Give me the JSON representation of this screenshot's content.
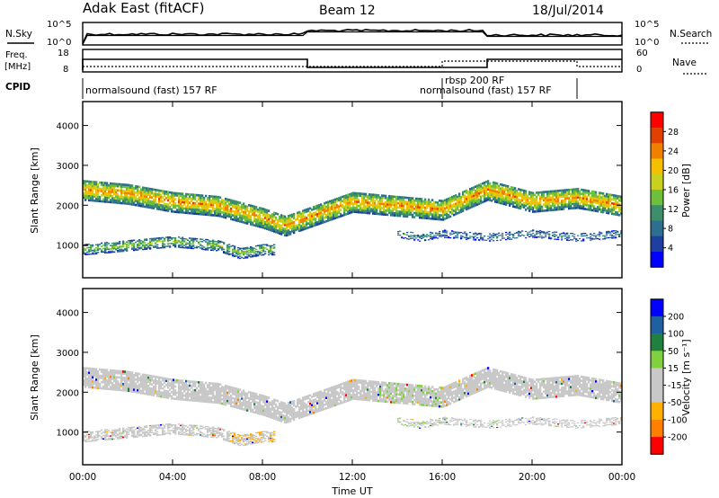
{
  "header": {
    "site": "Adak East (fitACF)",
    "beam": "Beam 12",
    "date": "18/Jul/2014"
  },
  "noise_panel": {
    "left_label": "N.Sky",
    "right_label": "N.Search",
    "left_ticks": [
      "10^5",
      "10^0"
    ],
    "right_ticks": [
      "10^5",
      "10^0"
    ]
  },
  "freq_panel": {
    "left_label_1": "Freq.",
    "left_label_2": "[MHz]",
    "right_label": "Nave",
    "left_ticks": [
      "18",
      "8"
    ],
    "right_ticks": [
      "60",
      "0"
    ]
  },
  "cpid": {
    "label": "CPID",
    "entries": [
      {
        "text": "normalsound (fast) 157 RF",
        "start_hour": 0
      },
      {
        "text": "rbsp 200 RF",
        "start_hour": 16
      },
      {
        "text": "normalsound (fast) 157 RF",
        "start_hour": 16
      }
    ]
  },
  "colors": {
    "power_scale": [
      "#0000ff",
      "#1e3fa0",
      "#2e6e8e",
      "#3c8f6a",
      "#6fbf3a",
      "#c8d020",
      "#f5c000",
      "#f08000",
      "#e04000",
      "#ff0000"
    ],
    "velocity_scale": [
      "#ff0000",
      "#ff8000",
      "#ffb000",
      "#c8c8c8",
      "#c8c8c8",
      "#80d040",
      "#208040",
      "#2060a0",
      "#0000ff"
    ]
  },
  "chart_data": [
    {
      "type": "heatmap",
      "title": "",
      "xlabel": "",
      "ylabel": "Slant Range [km]",
      "colorbar_label": "Power [dB]",
      "colorbar_ticks": [
        "28",
        "24",
        "20",
        "16",
        "12",
        "8",
        "4"
      ],
      "colorbar_range": [
        0,
        32
      ],
      "xlim_hours": [
        0,
        24
      ],
      "ylim_km": [
        180,
        4600
      ],
      "y_ticks": [
        "4000",
        "3000",
        "2000",
        "1000"
      ],
      "x_ticks": [
        "00:00",
        "04:00",
        "08:00",
        "12:00",
        "16:00",
        "20:00",
        "00:00"
      ],
      "features": [
        {
          "name": "main band",
          "t": [
            0,
            2,
            4,
            6,
            8,
            9,
            10,
            12,
            14,
            16,
            18,
            20,
            22,
            24
          ],
          "range_km": [
            2400,
            2300,
            2100,
            2000,
            1700,
            1500,
            1700,
            2100,
            2000,
            1900,
            2400,
            2100,
            2200,
            2000
          ],
          "power_db": 18
        },
        {
          "name": "lower band",
          "t": [
            0,
            2,
            4,
            6,
            7,
            8
          ],
          "range_km": [
            900,
            1000,
            1100,
            1000,
            800,
            900
          ],
          "power_db": 12
        },
        {
          "name": "mid band",
          "t": [
            14,
            15,
            16,
            18,
            20,
            22,
            24
          ],
          "range_km": [
            1300,
            1200,
            1300,
            1200,
            1300,
            1200,
            1300
          ],
          "power_db": 8
        }
      ]
    },
    {
      "type": "heatmap",
      "title": "",
      "xlabel": "Time UT",
      "ylabel": "Slant Range [km]",
      "colorbar_label": "Velocity [m s⁻¹]",
      "colorbar_ticks": [
        "200",
        "100",
        "50",
        "15",
        "-15",
        "-50",
        "-100",
        "-200"
      ],
      "colorbar_range": [
        -250,
        250
      ],
      "xlim_hours": [
        0,
        24
      ],
      "ylim_km": [
        180,
        4600
      ],
      "y_ticks": [
        "4000",
        "3000",
        "2000",
        "1000"
      ],
      "x_ticks": [
        "00:00",
        "04:00",
        "08:00",
        "12:00",
        "16:00",
        "20:00",
        "00:00"
      ]
    }
  ]
}
